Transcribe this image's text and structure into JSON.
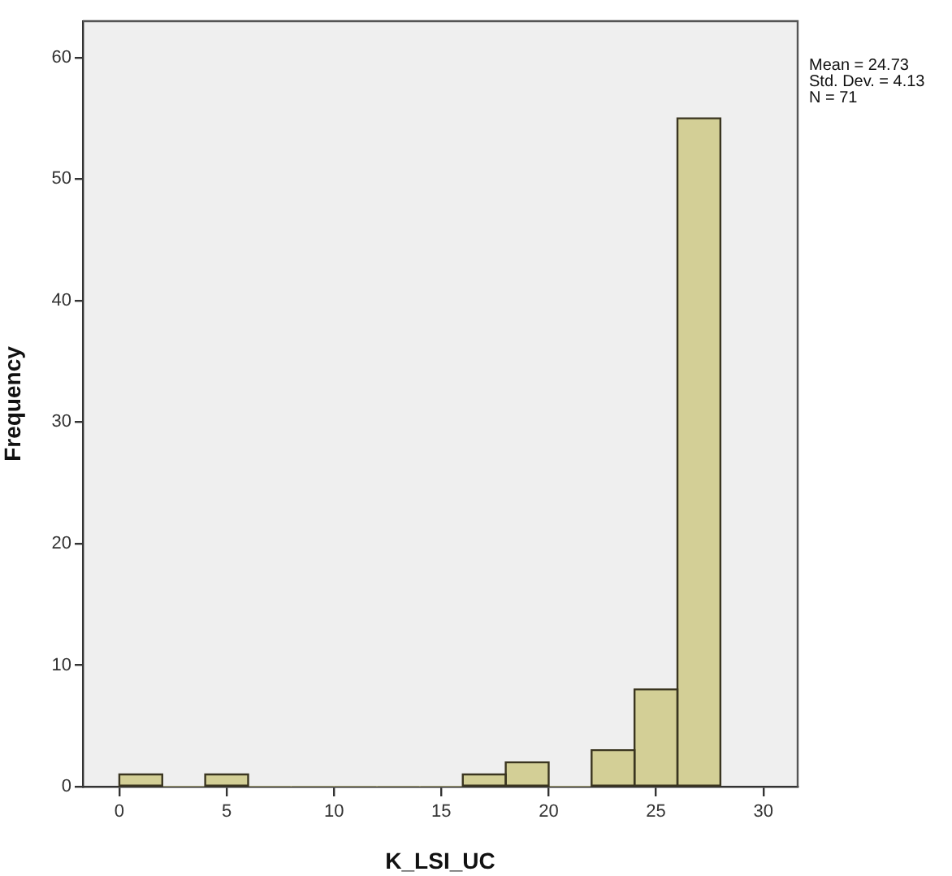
{
  "chart_data": {
    "type": "histogram",
    "xlabel": "K_LSI_UC",
    "ylabel": "Frequency",
    "bins": [
      0,
      2,
      4,
      6,
      8,
      10,
      12,
      14,
      16,
      18,
      20,
      22,
      24,
      26,
      28
    ],
    "values": [
      1,
      0,
      1,
      0,
      0,
      0,
      0,
      0,
      1,
      2,
      0,
      3,
      8,
      55
    ],
    "color": "#d3cf96",
    "xlim": [
      -1.7,
      31.6
    ],
    "xticks": [
      0,
      5,
      10,
      15,
      20,
      25,
      30
    ],
    "ylim": [
      0,
      63
    ],
    "yticks": [
      0,
      10,
      20,
      30,
      40,
      50,
      60
    ],
    "annotations": [
      "Mean = 24.73",
      "Std. Dev. = 4.13",
      "N = 71"
    ]
  }
}
